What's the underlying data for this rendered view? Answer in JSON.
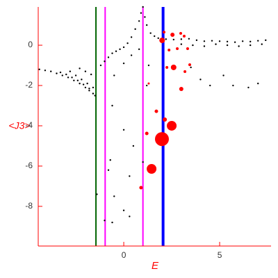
{
  "chart_data": {
    "type": "scatter",
    "xlabel": "E",
    "ylabel": "<J3>",
    "xlim": [
      -4.46,
      7.68
    ],
    "ylim": [
      -9.97,
      1.9
    ],
    "xticks": [
      0,
      5
    ],
    "yticks": [
      0,
      -2,
      -4,
      -6,
      -8
    ],
    "axis_color": "#ff0000",
    "vlines": [
      {
        "x": -1.45,
        "color": "#006400"
      },
      {
        "x": -0.97,
        "color": "#ff00ff"
      },
      {
        "x": 1.0,
        "color": "#ff00ff"
      },
      {
        "x": 2.05,
        "color": "#0000ff"
      }
    ],
    "series": [
      {
        "color": "#000000",
        "x": [
          -4.4,
          -4.1,
          -3.8,
          -3.5,
          -3.2,
          -2.9,
          -2.6,
          -2.3,
          -2.0,
          -1.8,
          -1.6,
          -1.5,
          -3.3,
          -3.0,
          -2.7,
          -2.4,
          -2.1,
          -1.8,
          -2.8,
          -2.5,
          -2.2,
          -1.9,
          -1.6,
          -2.3,
          -2.0,
          -1.7,
          -1.2,
          -1.0,
          -0.8,
          -0.6,
          -0.4,
          -0.2,
          0.0,
          0.2,
          0.4,
          0.6,
          0.8,
          0.9,
          1.0,
          1.1,
          1.2,
          1.4,
          1.6,
          1.8,
          2.2,
          2.6,
          3.0,
          3.4,
          3.8,
          4.2,
          4.6,
          5.0,
          5.4,
          5.8,
          6.2,
          6.6,
          7.0,
          7.4,
          3.0,
          3.6,
          4.2,
          4.8,
          5.4,
          6.0,
          6.6,
          7.2,
          -0.5,
          0.0,
          0.4,
          0.8,
          1.3,
          -1.4,
          -1.0,
          -0.6,
          -0.5,
          0.0,
          0.3,
          -0.8,
          -0.7,
          0.0,
          0.5,
          0.3,
          1.0,
          1.2,
          -0.6,
          4.5,
          5.7,
          6.5,
          7.0,
          3.5,
          4.0,
          5.2
        ],
        "values": [
          -1.2,
          -1.25,
          -1.3,
          -1.4,
          -1.5,
          -1.6,
          -1.75,
          -1.9,
          -2.1,
          -2.25,
          -2.4,
          -2.5,
          -1.35,
          -1.45,
          -1.6,
          -1.75,
          -1.95,
          -2.15,
          -1.3,
          -1.5,
          -1.7,
          -1.9,
          -2.1,
          -1.15,
          -1.3,
          -1.45,
          -1.0,
          -0.8,
          -0.6,
          -0.4,
          -0.3,
          -0.2,
          -0.1,
          0.1,
          0.4,
          0.8,
          1.2,
          1.6,
          1.9,
          1.4,
          1.0,
          0.6,
          0.45,
          0.35,
          0.3,
          0.28,
          0.3,
          0.32,
          0.25,
          0.2,
          0.22,
          0.2,
          0.18,
          0.15,
          0.2,
          0.18,
          0.22,
          0.25,
          0.05,
          0.0,
          -0.05,
          0.05,
          0.0,
          -0.05,
          0.0,
          0.05,
          -1.5,
          -0.9,
          -0.5,
          -0.2,
          -1.0,
          -7.4,
          -8.7,
          -8.8,
          -7.5,
          -8.2,
          -8.5,
          -6.2,
          -5.7,
          -4.2,
          -5.0,
          -6.5,
          -5.8,
          -2.0,
          -3.0,
          -2.0,
          -2.0,
          -2.1,
          -1.9,
          -1.1,
          -1.7,
          -1.5
        ]
      },
      {
        "color": "#ff0000",
        "x": [
          1.99,
          2.5,
          1.45,
          2.14,
          1.7,
          1.2,
          0.9,
          3.0,
          2.6,
          2.25,
          3.19,
          3.44,
          2.0,
          2.54,
          2.97,
          2.79,
          3.33,
          2.36,
          3.15,
          1.3,
          2.1
        ],
        "values": [
          -4.66,
          -4.0,
          -6.14,
          -3.69,
          -3.28,
          -4.38,
          -7.07,
          -2.17,
          -1.1,
          -1.1,
          -1.31,
          -0.97,
          0.24,
          0.52,
          0.59,
          -0.17,
          -0.17,
          -0.24,
          0.45,
          -1.9,
          0.65
        ],
        "sizes": [
          10,
          7,
          7,
          3,
          2.5,
          2.5,
          2.5,
          3,
          4,
          2,
          2,
          2,
          4,
          3,
          2,
          2,
          2,
          2,
          2,
          1.5,
          2
        ]
      }
    ]
  }
}
